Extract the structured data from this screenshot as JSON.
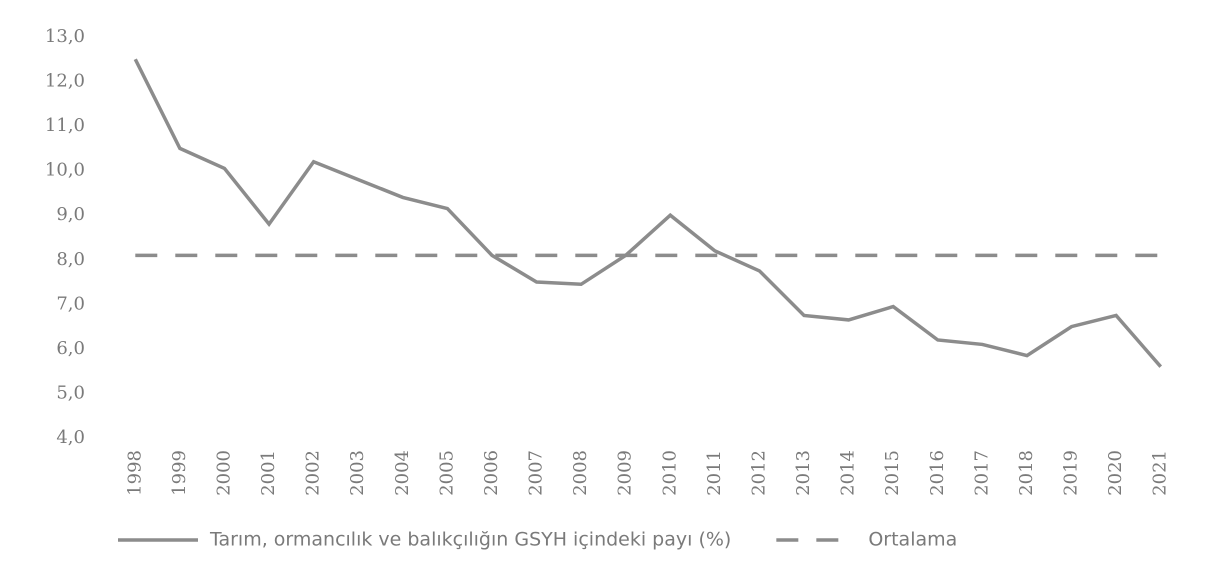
{
  "chart_data": {
    "type": "line",
    "categories": [
      "1998",
      "1999",
      "2000",
      "2001",
      "2002",
      "2003",
      "2004",
      "2005",
      "2006",
      "2007",
      "2008",
      "2009",
      "2010",
      "2011",
      "2012",
      "2013",
      "2014",
      "2015",
      "2016",
      "2017",
      "2018",
      "2019",
      "2020",
      "2021"
    ],
    "series": [
      {
        "name": "Tarım, ormancılık ve balıkçılığın GSYH içindeki payı (%)",
        "color": "#8c8c8c",
        "dash": false,
        "values": [
          12.5,
          10.5,
          10.05,
          8.8,
          10.2,
          9.8,
          9.4,
          9.15,
          8.1,
          7.5,
          7.45,
          8.1,
          9.0,
          8.2,
          7.75,
          6.75,
          6.65,
          6.95,
          6.2,
          6.1,
          5.85,
          6.5,
          6.75,
          5.6
        ]
      },
      {
        "name": "Ortalama",
        "color": "#8c8c8c",
        "dash": true,
        "values": [
          8.1,
          8.1,
          8.1,
          8.1,
          8.1,
          8.1,
          8.1,
          8.1,
          8.1,
          8.1,
          8.1,
          8.1,
          8.1,
          8.1,
          8.1,
          8.1,
          8.1,
          8.1,
          8.1,
          8.1,
          8.1,
          8.1,
          8.1,
          8.1
        ]
      }
    ],
    "ylim": [
      4,
      13
    ],
    "yticks": [
      {
        "value": 4,
        "label": "4,0"
      },
      {
        "value": 5,
        "label": "5,0"
      },
      {
        "value": 6,
        "label": "6,0"
      },
      {
        "value": 7,
        "label": "7,0"
      },
      {
        "value": 8,
        "label": "8,0"
      },
      {
        "value": 9,
        "label": "9,0"
      },
      {
        "value": 10,
        "label": "10,0"
      },
      {
        "value": 11,
        "label": "11,0"
      },
      {
        "value": 12,
        "label": "12,0"
      },
      {
        "value": 13,
        "label": "13,0"
      }
    ],
    "grid": false,
    "legend": "bottom"
  }
}
